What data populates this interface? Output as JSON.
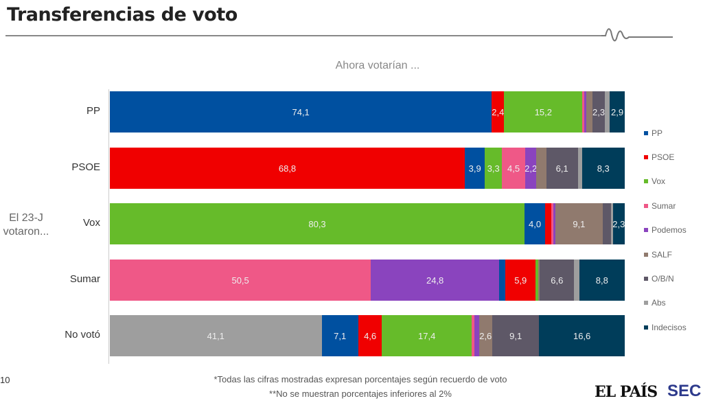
{
  "header": {
    "title": "Transferencias de voto"
  },
  "footer": {
    "page": "10",
    "note1": "*Todas las cifras mostradas expresan porcentajes según recuerdo de voto",
    "note2": "**No se muestran porcentajes inferiores al 2%",
    "logo": "EL PAÍS",
    "logo2": "SEC"
  },
  "chart_data": {
    "type": "bar",
    "orientation": "horizontal-stacked-100",
    "title": "Ahora votarían ...",
    "ylabel": "El 23-J votaron...",
    "legend_position": "right",
    "xlim": [
      0,
      100
    ],
    "label_threshold": 2,
    "parties": [
      {
        "name": "PP",
        "color": "#0050a0"
      },
      {
        "name": "PSOE",
        "color": "#f00000"
      },
      {
        "name": "Vox",
        "color": "#66bb2a"
      },
      {
        "name": "Sumar",
        "color": "#ef5887"
      },
      {
        "name": "Podemos",
        "color": "#8a44be"
      },
      {
        "name": "SALF",
        "color": "#907a6e"
      },
      {
        "name": "O/B/N",
        "color": "#5e5867"
      },
      {
        "name": "Abs",
        "color": "#9e9e9e"
      },
      {
        "name": "Indecisos",
        "color": "#003d5a"
      }
    ],
    "categories": [
      {
        "label": "PP",
        "segments": [
          [
            "PP",
            74.1
          ],
          [
            "PSOE",
            2.4
          ],
          [
            "Vox",
            15.2
          ],
          [
            "Sumar",
            0.3
          ],
          [
            "Podemos",
            0.5
          ],
          [
            "SALF",
            1.2
          ],
          [
            "O/B/N",
            2.3
          ],
          [
            "Abs",
            1.0
          ],
          [
            "Indecisos",
            2.9
          ]
        ]
      },
      {
        "label": "PSOE",
        "segments": [
          [
            "PSOE",
            68.8
          ],
          [
            "PP",
            3.9
          ],
          [
            "Vox",
            3.3
          ],
          [
            "Sumar",
            4.5
          ],
          [
            "Podemos",
            2.2
          ],
          [
            "SALF",
            1.9
          ],
          [
            "O/B/N",
            6.1
          ],
          [
            "Abs",
            0.8
          ],
          [
            "Indecisos",
            8.3
          ]
        ]
      },
      {
        "label": "Vox",
        "segments": [
          [
            "Vox",
            80.3
          ],
          [
            "PP",
            4.0
          ],
          [
            "PSOE",
            1.2
          ],
          [
            "Sumar",
            0.4
          ],
          [
            "Podemos",
            0.4
          ],
          [
            "SALF",
            9.1
          ],
          [
            "O/B/N",
            1.7
          ],
          [
            "Abs",
            0.3
          ],
          [
            "Indecisos",
            2.3
          ]
        ]
      },
      {
        "label": "Sumar",
        "segments": [
          [
            "Sumar",
            50.5
          ],
          [
            "Podemos",
            24.8
          ],
          [
            "PP",
            1.2
          ],
          [
            "PSOE",
            5.9
          ],
          [
            "Vox",
            0.5
          ],
          [
            "SALF",
            0.3
          ],
          [
            "O/B/N",
            6.6
          ],
          [
            "Abs",
            1.0
          ],
          [
            "Indecisos",
            8.8
          ]
        ]
      },
      {
        "label": "No votó",
        "segments": [
          [
            "Abs",
            41.1
          ],
          [
            "PP",
            7.1
          ],
          [
            "PSOE",
            4.6
          ],
          [
            "Vox",
            17.4
          ],
          [
            "Sumar",
            0.5
          ],
          [
            "Podemos",
            0.9
          ],
          [
            "SALF",
            2.6
          ],
          [
            "O/B/N",
            9.1
          ],
          [
            "Indecisos",
            16.6
          ]
        ]
      }
    ]
  }
}
